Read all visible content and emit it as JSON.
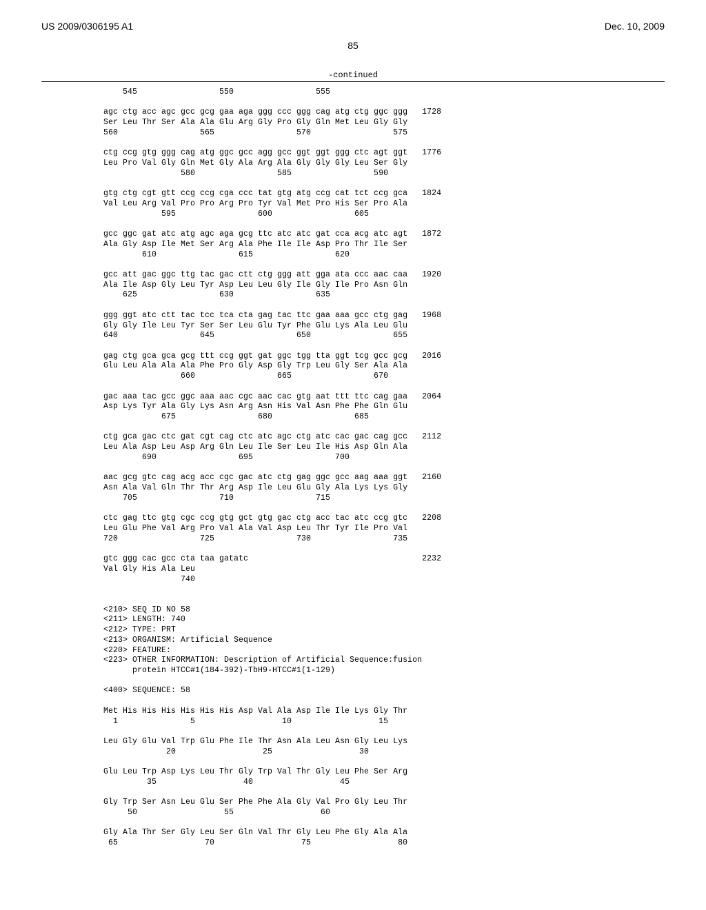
{
  "header": {
    "pub_number": "US 2009/0306195 A1",
    "date": "Dec. 10, 2009"
  },
  "page_number": "85",
  "continued_label": "-continued",
  "sequence_block": "    545                 550                 555\n\nagc ctg acc agc gcc gcg gaa aga ggg ccc ggg cag atg ctg ggc ggg   1728\nSer Leu Thr Ser Ala Ala Glu Arg Gly Pro Gly Gln Met Leu Gly Gly\n560                 565                 570                 575\n\nctg ccg gtg ggg cag atg ggc gcc agg gcc ggt ggt ggg ctc agt ggt   1776\nLeu Pro Val Gly Gln Met Gly Ala Arg Ala Gly Gly Gly Leu Ser Gly\n                580                 585                 590\n\ngtg ctg cgt gtt ccg ccg cga ccc tat gtg atg ccg cat tct ccg gca   1824\nVal Leu Arg Val Pro Pro Arg Pro Tyr Val Met Pro His Ser Pro Ala\n            595                 600                 605\n\ngcc ggc gat atc atg agc aga gcg ttc atc atc gat cca acg atc agt   1872\nAla Gly Asp Ile Met Ser Arg Ala Phe Ile Ile Asp Pro Thr Ile Ser\n        610                 615                 620\n\ngcc att gac ggc ttg tac gac ctt ctg ggg att gga ata ccc aac caa   1920\nAla Ile Asp Gly Leu Tyr Asp Leu Leu Gly Ile Gly Ile Pro Asn Gln\n    625                 630                 635\n\nggg ggt atc ctt tac tcc tca cta gag tac ttc gaa aaa gcc ctg gag   1968\nGly Gly Ile Leu Tyr Ser Ser Leu Glu Tyr Phe Glu Lys Ala Leu Glu\n640                 645                 650                 655\n\ngag ctg gca gca gcg ttt ccg ggt gat ggc tgg tta ggt tcg gcc gcg   2016\nGlu Leu Ala Ala Ala Phe Pro Gly Asp Gly Trp Leu Gly Ser Ala Ala\n                660                 665                 670\n\ngac aaa tac gcc ggc aaa aac cgc aac cac gtg aat ttt ttc cag gaa   2064\nAsp Lys Tyr Ala Gly Lys Asn Arg Asn His Val Asn Phe Phe Gln Glu\n            675                 680                 685\n\nctg gca gac ctc gat cgt cag ctc atc agc ctg atc cac gac cag gcc   2112\nLeu Ala Asp Leu Asp Arg Gln Leu Ile Ser Leu Ile His Asp Gln Ala\n        690                 695                 700\n\naac gcg gtc cag acg acc cgc gac atc ctg gag ggc gcc aag aaa ggt   2160\nAsn Ala Val Gln Thr Thr Arg Asp Ile Leu Glu Gly Ala Lys Lys Gly\n    705                 710                 715\n\nctc gag ttc gtg cgc ccg gtg gct gtg gac ctg acc tac atc ccg gtc   2208\nLeu Glu Phe Val Arg Pro Val Ala Val Asp Leu Thr Tyr Ile Pro Val\n720                 725                 730                 735\n\ngtc ggg cac gcc cta taa gatatc                                    2232\nVal Gly His Ala Leu\n                740\n\n\n<210> SEQ ID NO 58\n<211> LENGTH: 740\n<212> TYPE: PRT\n<213> ORGANISM: Artificial Sequence\n<220> FEATURE:\n<223> OTHER INFORMATION: Description of Artificial Sequence:fusion\n      protein HTCC#1(184-392)-TbH9-HTCC#1(1-129)\n\n<400> SEQUENCE: 58\n\nMet His His His His His His Asp Val Ala Asp Ile Ile Lys Gly Thr\n  1               5                  10                  15\n\nLeu Gly Glu Val Trp Glu Phe Ile Thr Asn Ala Leu Asn Gly Leu Lys\n             20                  25                  30\n\nGlu Leu Trp Asp Lys Leu Thr Gly Trp Val Thr Gly Leu Phe Ser Arg\n         35                  40                  45\n\nGly Trp Ser Asn Leu Glu Ser Phe Phe Ala Gly Val Pro Gly Leu Thr\n     50                  55                  60\n\nGly Ala Thr Ser Gly Leu Ser Gln Val Thr Gly Leu Phe Gly Ala Ala\n 65                  70                  75                  80"
}
